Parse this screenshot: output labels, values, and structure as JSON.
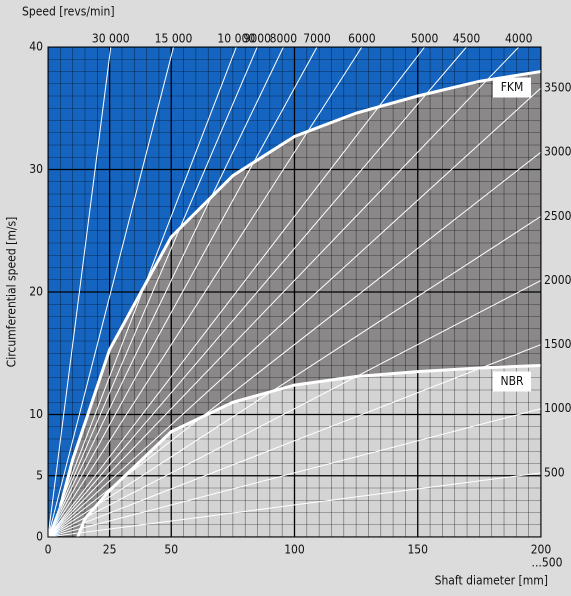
{
  "chart_data": {
    "type": "line",
    "x_label": "Shaft diameter [mm]",
    "x_note": "...500",
    "y_label": "Circumferential speed [m/s]",
    "speed_label": "Speed [revs/min]",
    "xlim": [
      0,
      200
    ],
    "ylim": [
      0,
      40
    ],
    "xticks": [
      0,
      25,
      50,
      100,
      150,
      200
    ],
    "yticks": [
      0,
      5,
      10,
      20,
      30,
      40
    ],
    "grid": true,
    "background_color": "#1565c0",
    "series": [
      {
        "name": "FKM",
        "color": "#8a8888",
        "x": [
          5,
          10,
          25,
          50,
          75,
          100,
          125,
          150,
          175,
          200
        ],
        "values": [
          2.5,
          6.3,
          15.3,
          24.5,
          29.5,
          32.7,
          34.6,
          36,
          37.2,
          38
        ]
      },
      {
        "name": "NBR",
        "color": "#d4d4d4",
        "x": [
          12,
          15,
          25,
          50,
          75,
          100,
          125,
          150,
          175,
          200
        ],
        "values": [
          0,
          1.5,
          3.8,
          8.6,
          11,
          12.4,
          13.1,
          13.5,
          13.8,
          14
        ]
      }
    ],
    "speed_lines": {
      "values": [
        30000,
        15000,
        10000,
        9000,
        8000,
        7000,
        6000,
        5000,
        4500,
        4000,
        3500,
        3000,
        2500,
        2000,
        1500,
        1000,
        500
      ],
      "value_labels": [
        "30 000",
        "15 000",
        "10 000",
        "9000",
        "8000",
        "7000",
        "6000",
        "5000",
        "4500",
        "4000",
        "3500",
        "3000",
        "2500",
        "2000",
        "1500",
        "1000",
        "500"
      ]
    }
  }
}
